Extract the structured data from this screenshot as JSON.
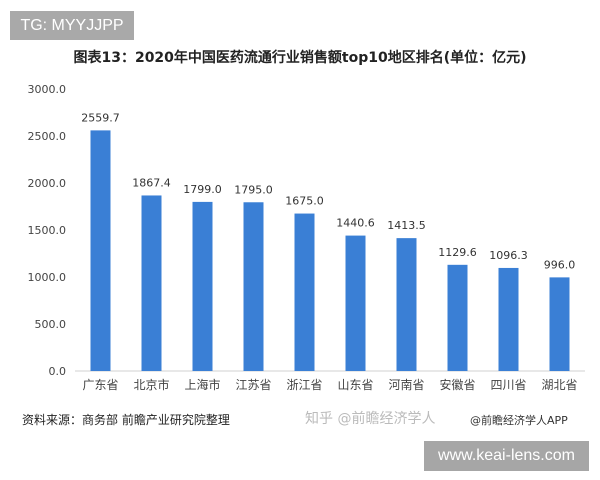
{
  "tag": "TG: MYYJJPP",
  "watermark_site": "www.keai-lens.com",
  "source": "资料来源：商务部 前瞻产业研究院整理",
  "zhihu": "知乎 @前瞻经济学人",
  "app": "@前瞻经济学人APP",
  "chart_data": {
    "type": "bar",
    "title": "图表13：2020年中国医药流通行业销售额top10地区排名(单位：亿元)",
    "categories": [
      "广东省",
      "北京市",
      "上海市",
      "江苏省",
      "浙江省",
      "山东省",
      "河南省",
      "安徽省",
      "四川省",
      "湖北省"
    ],
    "values": [
      2559.7,
      1867.4,
      1799.0,
      1795.0,
      1675.0,
      1440.6,
      1413.5,
      1129.6,
      1096.3,
      996.0
    ],
    "data_labels": [
      "2559.7",
      "1867.4",
      "1799.0",
      "1795.0",
      "1675.0",
      "1440.6",
      "1413.5",
      "1129.6",
      "1096.3",
      "996.0"
    ],
    "ylim": [
      0,
      3000
    ],
    "yticks": [
      "0.0",
      "500.0",
      "1000.0",
      "1500.0",
      "2000.0",
      "2500.0",
      "3000.0"
    ],
    "grid": false,
    "bar_color": "#3a7fd5"
  }
}
